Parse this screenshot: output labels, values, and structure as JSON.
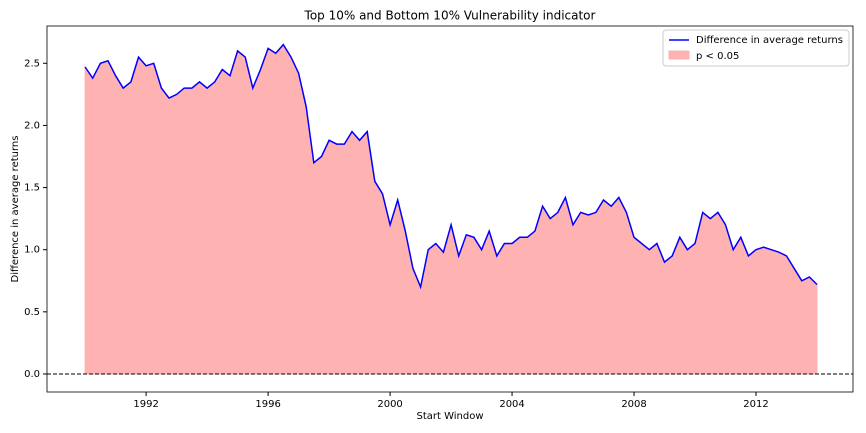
{
  "chart_data": {
    "type": "area_line",
    "title": "Top 10% and Bottom 10% Vulnerability indicator",
    "xlabel": "Start Window",
    "ylabel": "Difference in average returns",
    "x": [
      1990.0,
      1990.25,
      1990.5,
      1990.75,
      1991.0,
      1991.25,
      1991.5,
      1991.75,
      1992.0,
      1992.25,
      1992.5,
      1992.75,
      1993.0,
      1993.25,
      1993.5,
      1993.75,
      1994.0,
      1994.25,
      1994.5,
      1994.75,
      1995.0,
      1995.25,
      1995.5,
      1995.75,
      1996.0,
      1996.25,
      1996.5,
      1996.75,
      1997.0,
      1997.25,
      1997.5,
      1997.75,
      1998.0,
      1998.25,
      1998.5,
      1998.75,
      1999.0,
      1999.25,
      1999.5,
      1999.75,
      2000.0,
      2000.25,
      2000.5,
      2000.75,
      2001.0,
      2001.25,
      2001.5,
      2001.75,
      2002.0,
      2002.25,
      2002.5,
      2002.75,
      2003.0,
      2003.25,
      2003.5,
      2003.75,
      2004.0,
      2004.25,
      2004.5,
      2004.75,
      2005.0,
      2005.25,
      2005.5,
      2005.75,
      2006.0,
      2006.25,
      2006.5,
      2006.75,
      2007.0,
      2007.25,
      2007.5,
      2007.75,
      2008.0,
      2008.25,
      2008.5,
      2008.75,
      2009.0,
      2009.25,
      2009.5,
      2009.75,
      2010.0,
      2010.25,
      2010.5,
      2010.75,
      2011.0,
      2011.25,
      2011.5,
      2011.75,
      2012.0,
      2012.25,
      2012.5,
      2012.75,
      2013.0,
      2013.25,
      2013.5,
      2013.75,
      2014.0
    ],
    "series": [
      {
        "name": "Difference in average returns",
        "color": "#0000ff",
        "values": [
          2.47,
          2.38,
          2.5,
          2.52,
          2.4,
          2.3,
          2.35,
          2.55,
          2.48,
          2.5,
          2.3,
          2.22,
          2.25,
          2.3,
          2.3,
          2.35,
          2.3,
          2.35,
          2.45,
          2.4,
          2.6,
          2.55,
          2.3,
          2.45,
          2.62,
          2.58,
          2.65,
          2.55,
          2.42,
          2.15,
          1.7,
          1.75,
          1.88,
          1.85,
          1.85,
          1.95,
          1.88,
          1.95,
          1.55,
          1.45,
          1.2,
          1.4,
          1.15,
          0.85,
          0.7,
          1.0,
          1.05,
          0.98,
          1.2,
          0.95,
          1.12,
          1.1,
          1.0,
          1.15,
          0.95,
          1.05,
          1.05,
          1.1,
          1.1,
          1.15,
          1.35,
          1.25,
          1.3,
          1.42,
          1.2,
          1.3,
          1.28,
          1.3,
          1.4,
          1.35,
          1.42,
          1.3,
          1.1,
          1.05,
          1.0,
          1.05,
          0.9,
          0.95,
          1.1,
          1.0,
          1.05,
          1.3,
          1.25,
          1.3,
          1.2,
          1.0,
          1.1,
          0.95,
          1.0,
          1.02,
          1.0,
          0.98,
          0.95,
          0.85,
          0.75,
          0.78,
          0.72
        ]
      }
    ],
    "fill_name": "p < 0.05",
    "fill_color": "#ffb2b2",
    "hline": 0,
    "xlim": [
      1988.75,
      2015.18
    ],
    "ylim": [
      -0.145,
      2.8
    ],
    "xticks": [
      1992,
      1996,
      2000,
      2004,
      2008,
      2012
    ],
    "yticks": [
      {
        "value": 0,
        "label": "0.0"
      },
      0.5,
      {
        "value": 1,
        "label": "1.0"
      },
      1.5,
      {
        "value": 2,
        "label": "2.0"
      },
      2.5
    ],
    "legend": "upper right"
  }
}
